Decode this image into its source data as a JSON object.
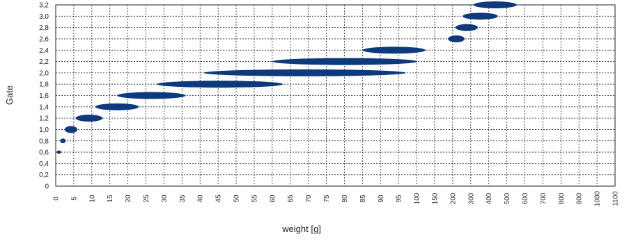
{
  "chart_data": {
    "type": "range",
    "title": "",
    "xlabel": "weight [g]",
    "ylabel": "Gate",
    "x_ticks": [
      "0",
      "5",
      "10",
      "15",
      "20",
      "25",
      "30",
      "35",
      "40",
      "45",
      "50",
      "55",
      "60",
      "65",
      "70",
      "75",
      "80",
      "85",
      "90",
      "95",
      "100",
      "150",
      "200",
      "300",
      "400",
      "500",
      "600",
      "700",
      "800",
      "900",
      "1000",
      "1100"
    ],
    "y_ticks": [
      "0",
      "0,2",
      "0,4",
      "0,6",
      "0,8",
      "1,0",
      "1,2",
      "1,4",
      "1,6",
      "1,8",
      "2,0",
      "2,2",
      "2,4",
      "2,6",
      "2,8",
      "3,0",
      "3,2"
    ],
    "ylim": [
      0,
      3.2
    ],
    "grid": true,
    "series_color": "#0d3a7c",
    "ranges": [
      {
        "gate": 0.6,
        "min": 0.3,
        "max": 1.5
      },
      {
        "gate": 0.8,
        "min": 1.2,
        "max": 2.8
      },
      {
        "gate": 1.0,
        "min": 2.5,
        "max": 6
      },
      {
        "gate": 1.2,
        "min": 5.5,
        "max": 13
      },
      {
        "gate": 1.4,
        "min": 11,
        "max": 23
      },
      {
        "gate": 1.6,
        "min": 17,
        "max": 36
      },
      {
        "gate": 1.8,
        "min": 28,
        "max": 63
      },
      {
        "gate": 2.0,
        "min": 41,
        "max": 97
      },
      {
        "gate": 2.2,
        "min": 60,
        "max": 102
      },
      {
        "gate": 2.4,
        "min": 85,
        "max": 125
      },
      {
        "gate": 2.6,
        "min": 187,
        "max": 266
      },
      {
        "gate": 2.8,
        "min": 215,
        "max": 340
      },
      {
        "gate": 3.0,
        "min": 255,
        "max": 450
      },
      {
        "gate": 3.2,
        "min": 315,
        "max": 555
      }
    ]
  }
}
